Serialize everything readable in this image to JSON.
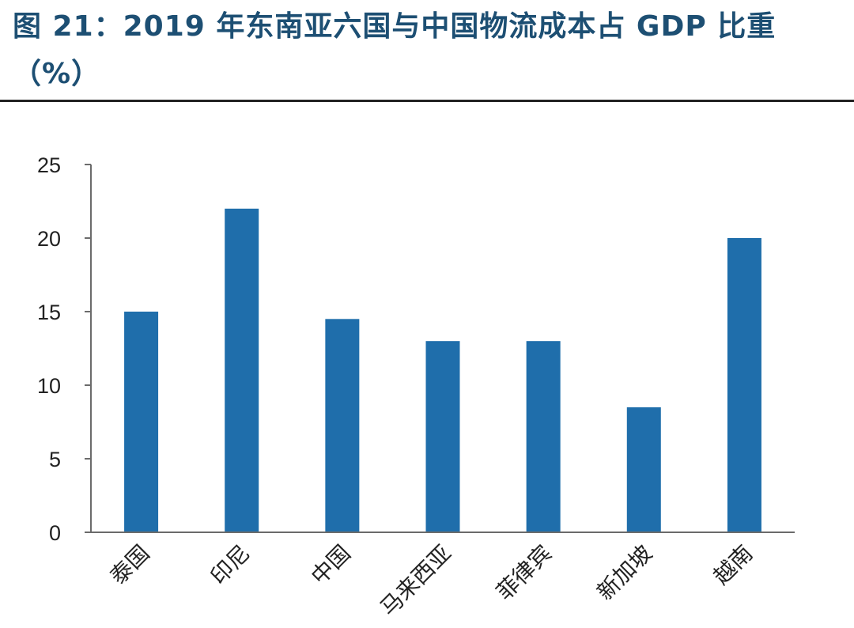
{
  "figure": {
    "title": "图 21：2019 年东南亚六国与中国物流成本占 GDP 比重（%）"
  },
  "colors": {
    "bar": "#1f6eab",
    "axis": "#6b6b6b",
    "title": "#1d4f73"
  },
  "chart_data": {
    "type": "bar",
    "title": "图 21：2019 年东南亚六国与中国物流成本占 GDP 比重（%）",
    "xlabel": "",
    "ylabel": "",
    "categories": [
      "泰国",
      "印尼",
      "中国",
      "马来西亚",
      "菲律宾",
      "新加坡",
      "越南"
    ],
    "values": [
      15,
      22,
      14.5,
      13,
      13,
      8.5,
      20
    ],
    "ylim": [
      0,
      25
    ],
    "yticks": [
      0,
      5,
      10,
      15,
      20,
      25
    ],
    "grid": false,
    "legend": "none"
  }
}
